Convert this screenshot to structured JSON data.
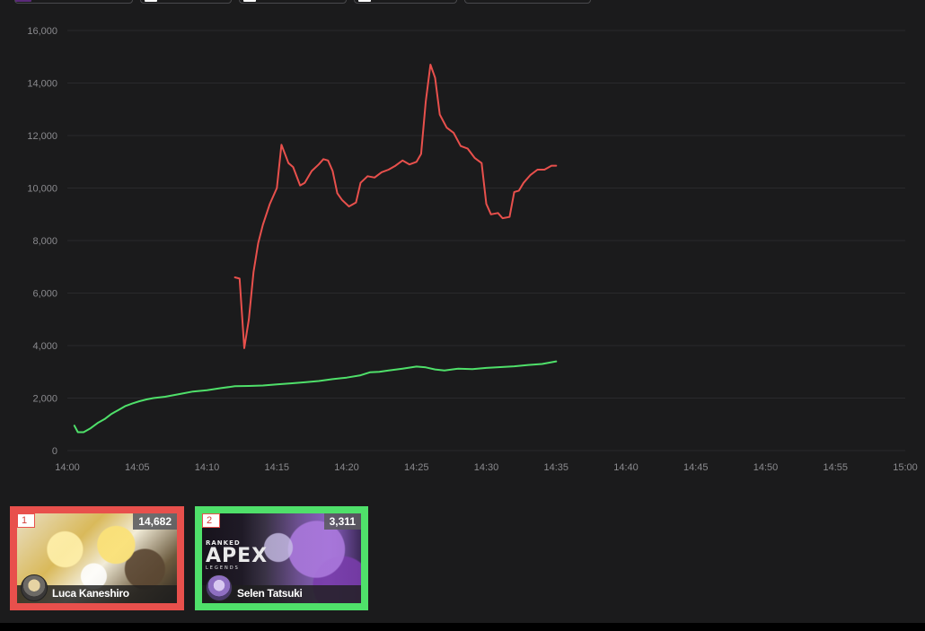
{
  "filter_chips": [
    {
      "name": "chip-1",
      "color": "#5b2a7a"
    },
    {
      "name": "chip-2",
      "color": "#ffffff"
    },
    {
      "name": "chip-3",
      "color": "#ffffff"
    },
    {
      "name": "chip-4",
      "color": "#ffffff"
    },
    {
      "name": "chip-5",
      "color": ""
    }
  ],
  "chart_data": {
    "type": "line",
    "title": "",
    "xlabel": "",
    "ylabel": "",
    "x_ticks": [
      "14:00",
      "14:05",
      "14:10",
      "14:15",
      "14:20",
      "14:25",
      "14:30",
      "14:35",
      "14:40",
      "14:45",
      "14:50",
      "14:55",
      "15:00"
    ],
    "y_ticks": [
      "0",
      "2,000",
      "4,000",
      "6,000",
      "8,000",
      "10,000",
      "12,000",
      "14,000",
      "16,000"
    ],
    "xlim": [
      "14:00",
      "15:00"
    ],
    "ylim": [
      0,
      16000
    ],
    "grid": true,
    "legend": "none",
    "series": [
      {
        "color": "#e8504c",
        "points": [
          [
            "14:12:00",
            6600
          ],
          [
            "14:12:20",
            6550
          ],
          [
            "14:12:40",
            3900
          ],
          [
            "14:13:00",
            5000
          ],
          [
            "14:13:20",
            6800
          ],
          [
            "14:13:40",
            7900
          ],
          [
            "14:14:00",
            8600
          ],
          [
            "14:14:30",
            9400
          ],
          [
            "14:15:00",
            10000
          ],
          [
            "14:15:20",
            11650
          ],
          [
            "14:15:50",
            10950
          ],
          [
            "14:16:10",
            10800
          ],
          [
            "14:16:40",
            10100
          ],
          [
            "14:17:00",
            10200
          ],
          [
            "14:17:30",
            10650
          ],
          [
            "14:18:00",
            10900
          ],
          [
            "14:18:20",
            11100
          ],
          [
            "14:18:40",
            11050
          ],
          [
            "14:19:00",
            10650
          ],
          [
            "14:19:20",
            9800
          ],
          [
            "14:19:40",
            9550
          ],
          [
            "14:20:10",
            9300
          ],
          [
            "14:20:40",
            9450
          ],
          [
            "14:21:00",
            10200
          ],
          [
            "14:21:30",
            10450
          ],
          [
            "14:22:00",
            10400
          ],
          [
            "14:22:30",
            10600
          ],
          [
            "14:23:00",
            10700
          ],
          [
            "14:23:30",
            10850
          ],
          [
            "14:24:00",
            11050
          ],
          [
            "14:24:30",
            10900
          ],
          [
            "14:25:00",
            11000
          ],
          [
            "14:25:20",
            11300
          ],
          [
            "14:25:40",
            13300
          ],
          [
            "14:26:00",
            14700
          ],
          [
            "14:26:20",
            14200
          ],
          [
            "14:26:40",
            12800
          ],
          [
            "14:27:10",
            12300
          ],
          [
            "14:27:40",
            12100
          ],
          [
            "14:28:10",
            11600
          ],
          [
            "14:28:40",
            11500
          ],
          [
            "14:29:10",
            11150
          ],
          [
            "14:29:40",
            10950
          ],
          [
            "14:30:00",
            9400
          ],
          [
            "14:30:20",
            9000
          ],
          [
            "14:30:50",
            9050
          ],
          [
            "14:31:10",
            8850
          ],
          [
            "14:31:40",
            8900
          ],
          [
            "14:32:00",
            9850
          ],
          [
            "14:32:20",
            9900
          ],
          [
            "14:32:40",
            10200
          ],
          [
            "14:33:10",
            10500
          ],
          [
            "14:33:40",
            10700
          ],
          [
            "14:34:10",
            10700
          ],
          [
            "14:34:40",
            10850
          ],
          [
            "14:35:00",
            10850
          ]
        ]
      },
      {
        "color": "#4fe06a",
        "points": [
          [
            "14:00:30",
            950
          ],
          [
            "14:00:45",
            700
          ],
          [
            "14:01:10",
            700
          ],
          [
            "14:01:40",
            850
          ],
          [
            "14:02:10",
            1050
          ],
          [
            "14:02:40",
            1200
          ],
          [
            "14:03:10",
            1400
          ],
          [
            "14:03:40",
            1550
          ],
          [
            "14:04:10",
            1700
          ],
          [
            "14:04:40",
            1800
          ],
          [
            "14:05:10",
            1880
          ],
          [
            "14:05:40",
            1950
          ],
          [
            "14:06:10",
            2000
          ],
          [
            "14:07:00",
            2050
          ],
          [
            "14:08:00",
            2150
          ],
          [
            "14:09:00",
            2250
          ],
          [
            "14:10:00",
            2300
          ],
          [
            "14:11:00",
            2380
          ],
          [
            "14:12:00",
            2450
          ],
          [
            "14:13:00",
            2460
          ],
          [
            "14:14:00",
            2480
          ],
          [
            "14:15:00",
            2520
          ],
          [
            "14:16:00",
            2560
          ],
          [
            "14:17:00",
            2600
          ],
          [
            "14:18:00",
            2650
          ],
          [
            "14:19:00",
            2720
          ],
          [
            "14:20:00",
            2780
          ],
          [
            "14:21:00",
            2870
          ],
          [
            "14:21:40",
            2980
          ],
          [
            "14:22:20",
            3000
          ],
          [
            "14:23:00",
            3050
          ],
          [
            "14:24:00",
            3120
          ],
          [
            "14:25:00",
            3200
          ],
          [
            "14:25:40",
            3170
          ],
          [
            "14:26:20",
            3090
          ],
          [
            "14:27:00",
            3050
          ],
          [
            "14:28:00",
            3120
          ],
          [
            "14:29:00",
            3100
          ],
          [
            "14:30:00",
            3150
          ],
          [
            "14:31:00",
            3180
          ],
          [
            "14:32:00",
            3210
          ],
          [
            "14:33:00",
            3260
          ],
          [
            "14:34:00",
            3300
          ],
          [
            "14:35:00",
            3400
          ]
        ]
      }
    ]
  },
  "cards": [
    {
      "rank": "1",
      "viewers": "14,682",
      "name": "Luca Kaneshiro",
      "border_color": "#e8504c"
    },
    {
      "rank": "2",
      "viewers": "3,311",
      "name": "Selen Tatsuki",
      "border_color": "#4fe06a",
      "thumbnail_text": {
        "top": "RANKED",
        "main": "APEX",
        "bottom": "LEGENDS"
      }
    }
  ]
}
